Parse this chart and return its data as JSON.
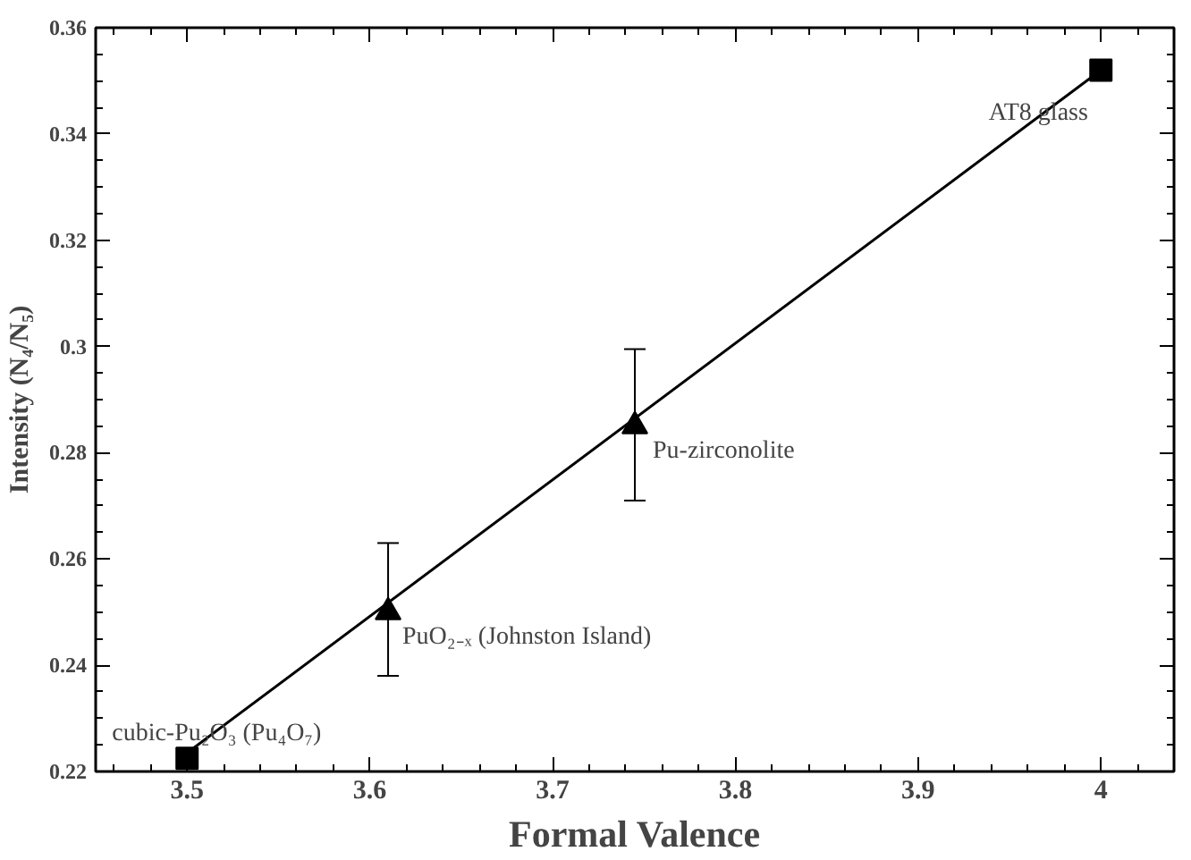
{
  "chart_data": {
    "type": "scatter",
    "xlabel": "Formal Valence",
    "ylabel": "Intensity (N₄/N₅)",
    "xlim": [
      3.45,
      4.04
    ],
    "xticks": [
      3.5,
      3.6,
      3.7,
      3.8,
      3.9,
      4
    ],
    "ylim": [
      0.22,
      0.36
    ],
    "yticks": [
      0.22,
      0.24,
      0.26,
      0.28,
      0.3,
      0.32,
      0.34,
      0.36
    ],
    "grid": false,
    "series": [
      {
        "marker": "square",
        "color": "#000000",
        "x": [
          3.5,
          4.0
        ],
        "values": [
          0.2225,
          0.352
        ]
      },
      {
        "marker": "triangle",
        "color": "#000000",
        "x": [
          3.61,
          3.745
        ],
        "values": [
          0.25,
          0.285
        ],
        "errors": [
          [
            0.238,
            0.263
          ],
          [
            0.271,
            0.2995
          ]
        ]
      },
      {
        "type": "line",
        "marker": "none",
        "line_style": "solid",
        "color": "#000000",
        "x": [
          3.5,
          4.0
        ],
        "values": [
          0.2235,
          0.352
        ]
      }
    ],
    "annotations": [
      {
        "text": "cubic-Pu₂O₃ (Pu₄O₇)",
        "x": 3.5,
        "y": 0.2225
      },
      {
        "text": "PuO₂₋ₓ  (Johnston Island)",
        "x": 3.61,
        "y": 0.25
      },
      {
        "text": "Pu-zirconolite",
        "x": 3.745,
        "y": 0.285
      },
      {
        "text": "AT8 glass",
        "x": 4.0,
        "y": 0.352
      }
    ]
  }
}
